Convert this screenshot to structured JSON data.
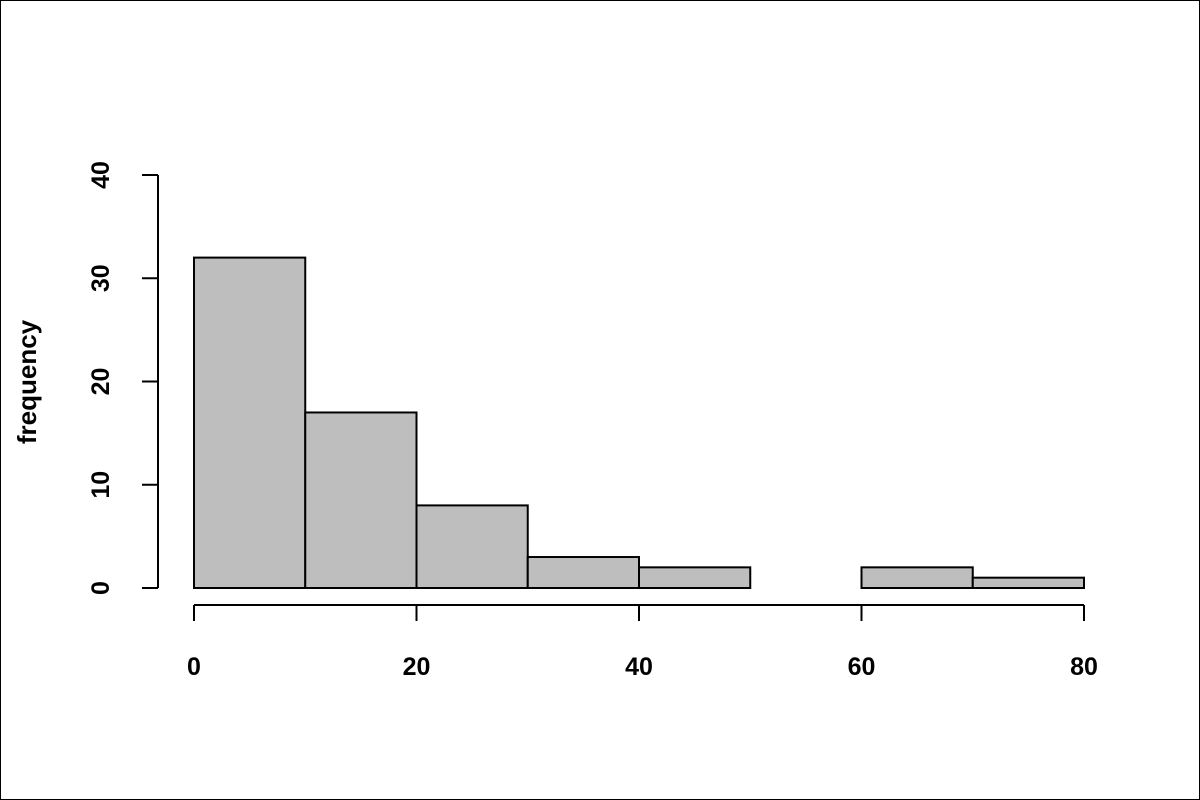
{
  "chart_data": {
    "type": "bar",
    "title": "",
    "xlabel": "",
    "ylabel": "frequency",
    "bins": [
      [
        0,
        10
      ],
      [
        10,
        20
      ],
      [
        20,
        30
      ],
      [
        30,
        40
      ],
      [
        40,
        50
      ],
      [
        50,
        60
      ],
      [
        60,
        70
      ],
      [
        70,
        80
      ]
    ],
    "values": [
      32,
      17,
      8,
      3,
      2,
      0,
      2,
      1
    ],
    "xlim": [
      0,
      80
    ],
    "ylim": [
      0,
      40
    ],
    "x_ticks": [
      0,
      20,
      40,
      60,
      80
    ],
    "y_ticks": [
      0,
      10,
      20,
      30,
      40
    ],
    "grid": false,
    "bar_color": "#bebebe",
    "edge_color": "#000000"
  }
}
